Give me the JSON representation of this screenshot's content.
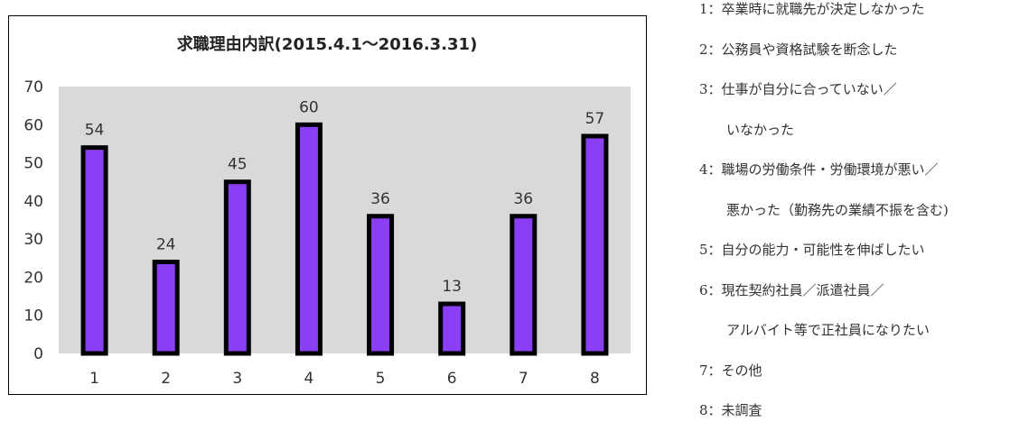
{
  "chart_data": {
    "type": "bar",
    "title": "求職理由内訳(2015.4.1～2016.3.31)",
    "categories": [
      "1",
      "2",
      "3",
      "4",
      "5",
      "6",
      "7",
      "8"
    ],
    "values": [
      54,
      24,
      45,
      60,
      36,
      13,
      36,
      57
    ],
    "ylim": [
      0,
      70
    ],
    "yticks": [
      "0",
      "10",
      "20",
      "30",
      "40",
      "50",
      "60",
      "70"
    ],
    "xlabel": "",
    "ylabel": "",
    "grid": false,
    "data_labels": true
  },
  "colors": {
    "bar_fill": "#8b3ff5",
    "bar_stroke": "#000000",
    "plot_background": "#d9d9d9"
  },
  "legend": [
    {
      "text": "1：卒業時に就職先が決定しなかった",
      "continuation": false
    },
    {
      "text": "2：公務員や資格試験を断念した",
      "continuation": false
    },
    {
      "text": "3：仕事が自分に合っていない／",
      "continuation": false
    },
    {
      "text": "いなかった",
      "continuation": true
    },
    {
      "text": "4：職場の労働条件・労働環境が悪い／",
      "continuation": false
    },
    {
      "text": "悪かった（勤務先の業績不振を含む)",
      "continuation": true
    },
    {
      "text": "5：自分の能力・可能性を伸ばしたい",
      "continuation": false
    },
    {
      "text": "6：現在契約社員／派遣社員／",
      "continuation": false
    },
    {
      "text": "アルバイト等で正社員になりたい",
      "continuation": true
    },
    {
      "text": "7：その他",
      "continuation": false
    },
    {
      "text": "8：未調査",
      "continuation": false
    }
  ]
}
